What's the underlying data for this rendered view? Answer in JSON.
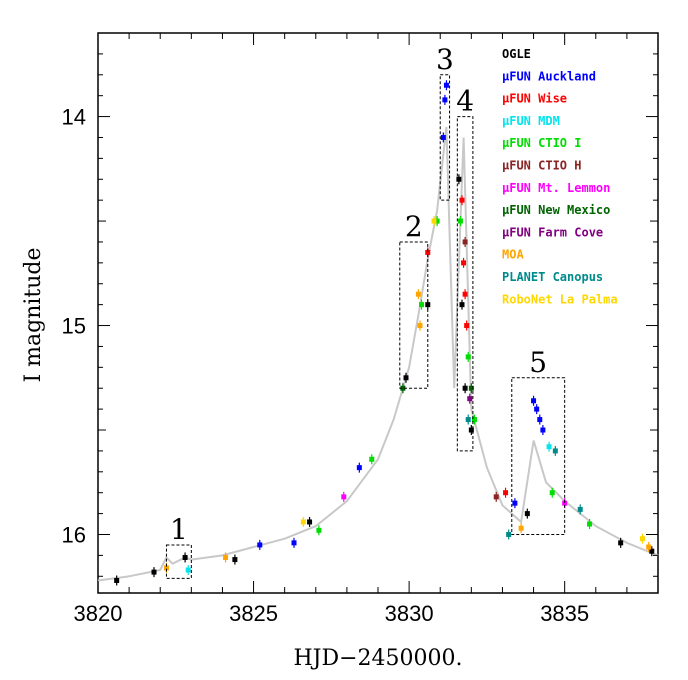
{
  "chart_data": {
    "type": "scatter",
    "xlabel": "HJD−2450000.",
    "ylabel": "I magnitude",
    "xlim": [
      3820,
      3838
    ],
    "ylim": [
      16.28,
      13.6
    ],
    "y_inverted": true,
    "x_ticks": [
      3820,
      3825,
      3830,
      3835
    ],
    "x_tick_labels": [
      "3820",
      "3825",
      "3830",
      "3835"
    ],
    "y_ticks": [
      14,
      15,
      16
    ],
    "y_tick_labels": [
      "14",
      "15",
      "16"
    ],
    "legend_position": "top-right",
    "model_curve_color": "#c8c8c8",
    "model_curve": [
      [
        3820,
        16.22
      ],
      [
        3821,
        16.2
      ],
      [
        3822,
        16.17
      ],
      [
        3822.2,
        16.11
      ],
      [
        3822.4,
        16.14
      ],
      [
        3822.8,
        16.11
      ],
      [
        3823,
        16.12
      ],
      [
        3824,
        16.1
      ],
      [
        3825,
        16.06
      ],
      [
        3826,
        16.02
      ],
      [
        3827,
        15.96
      ],
      [
        3828,
        15.84
      ],
      [
        3829,
        15.64
      ],
      [
        3829.5,
        15.45
      ],
      [
        3830,
        15.2
      ],
      [
        3830.3,
        14.95
      ],
      [
        3830.6,
        14.68
      ],
      [
        3830.9,
        14.45
      ],
      [
        3831.2,
        14.05
      ],
      [
        3831.45,
        15.3
      ],
      [
        3831.75,
        14.1
      ],
      [
        3832,
        15.4
      ],
      [
        3832.5,
        15.68
      ],
      [
        3833,
        15.86
      ],
      [
        3833.6,
        15.94
      ],
      [
        3834,
        15.55
      ],
      [
        3834.4,
        15.75
      ],
      [
        3835,
        15.84
      ],
      [
        3836,
        15.96
      ],
      [
        3837,
        16.04
      ],
      [
        3838,
        16.1
      ]
    ],
    "series": [
      {
        "name": "OGLE",
        "color": "#000000",
        "points": [
          [
            3820.6,
            16.22
          ],
          [
            3821.8,
            16.18
          ],
          [
            3822.8,
            16.11
          ],
          [
            3824.4,
            16.12
          ],
          [
            3826.8,
            15.94
          ],
          [
            3829.9,
            15.25
          ],
          [
            3830.6,
            14.9
          ],
          [
            3831.6,
            14.3
          ],
          [
            3831.7,
            14.9
          ],
          [
            3831.8,
            15.3
          ],
          [
            3832,
            15.5
          ],
          [
            3833.8,
            15.9
          ],
          [
            3836.8,
            16.04
          ],
          [
            3837.8,
            16.08
          ]
        ]
      },
      {
        "name": "μFUN Auckland",
        "color": "#0000ff",
        "points": [
          [
            3825.2,
            16.05
          ],
          [
            3826.3,
            16.04
          ],
          [
            3828.4,
            15.68
          ],
          [
            3831.1,
            14.1
          ],
          [
            3831.15,
            13.92
          ],
          [
            3831.2,
            13.85
          ],
          [
            3833.4,
            15.85
          ],
          [
            3834,
            15.36
          ],
          [
            3834.1,
            15.4
          ],
          [
            3834.2,
            15.45
          ],
          [
            3834.3,
            15.5
          ]
        ]
      },
      {
        "name": "μFUN Wise",
        "color": "#ff0000",
        "points": [
          [
            3830.6,
            14.65
          ],
          [
            3831.7,
            14.4
          ],
          [
            3831.75,
            14.7
          ],
          [
            3831.8,
            14.85
          ],
          [
            3831.85,
            15.0
          ],
          [
            3833.1,
            15.8
          ]
        ]
      },
      {
        "name": "μFUN MDM",
        "color": "#00e5ee",
        "points": [
          [
            3822.9,
            16.17
          ],
          [
            3834.5,
            15.58
          ]
        ]
      },
      {
        "name": "μFUN CTIO I",
        "color": "#00dd00",
        "points": [
          [
            3827.1,
            15.98
          ],
          [
            3828.8,
            15.64
          ],
          [
            3830.4,
            14.9
          ],
          [
            3830.9,
            14.5
          ],
          [
            3831.65,
            14.5
          ],
          [
            3831.9,
            15.15
          ],
          [
            3832.1,
            15.45
          ],
          [
            3834.6,
            15.8
          ],
          [
            3835.8,
            15.95
          ]
        ]
      },
      {
        "name": "μFUN CTIO H",
        "color": "#8b2323",
        "points": [
          [
            3831.8,
            14.6
          ],
          [
            3832.8,
            15.82
          ]
        ]
      },
      {
        "name": "μFUN Mt. Lemmon",
        "color": "#ff00ff",
        "points": [
          [
            3827.9,
            15.82
          ],
          [
            3835,
            15.85
          ]
        ]
      },
      {
        "name": "μFUN New Mexico",
        "color": "#006400",
        "points": [
          [
            3829.8,
            15.3
          ],
          [
            3832,
            15.3
          ]
        ]
      },
      {
        "name": "μFUN Farm Cove",
        "color": "#800080",
        "points": [
          [
            3831.95,
            15.35
          ]
        ]
      },
      {
        "name": "MOA",
        "color": "#ffa500",
        "points": [
          [
            3822.2,
            16.16
          ],
          [
            3824.1,
            16.11
          ],
          [
            3830.3,
            14.85
          ],
          [
            3830.35,
            15.0
          ],
          [
            3833.6,
            15.97
          ],
          [
            3837.7,
            16.06
          ]
        ]
      },
      {
        "name": "PLANET Canopus",
        "color": "#008b8b",
        "points": [
          [
            3831.9,
            15.45
          ],
          [
            3833.2,
            16.0
          ],
          [
            3834.7,
            15.6
          ],
          [
            3835.5,
            15.88
          ]
        ]
      },
      {
        "name": "RoboNet La Palma",
        "color": "#ffd700",
        "points": [
          [
            3826.6,
            15.94
          ],
          [
            3830.8,
            14.5
          ],
          [
            3837.5,
            16.02
          ]
        ]
      }
    ],
    "boxes": [
      {
        "label": "1",
        "x0": 3822.2,
        "x1": 3823.0,
        "y0": 16.05,
        "y1": 16.21
      },
      {
        "label": "2",
        "x0": 3829.7,
        "x1": 3830.6,
        "y0": 14.6,
        "y1": 15.3
      },
      {
        "label": "3",
        "x0": 3831.0,
        "x1": 3831.3,
        "y0": 13.8,
        "y1": 14.4
      },
      {
        "label": "4",
        "x0": 3831.55,
        "x1": 3832.05,
        "y0": 14.0,
        "y1": 15.6
      },
      {
        "label": "5",
        "x0": 3833.3,
        "x1": 3835.0,
        "y0": 15.25,
        "y1": 16.0
      }
    ]
  }
}
